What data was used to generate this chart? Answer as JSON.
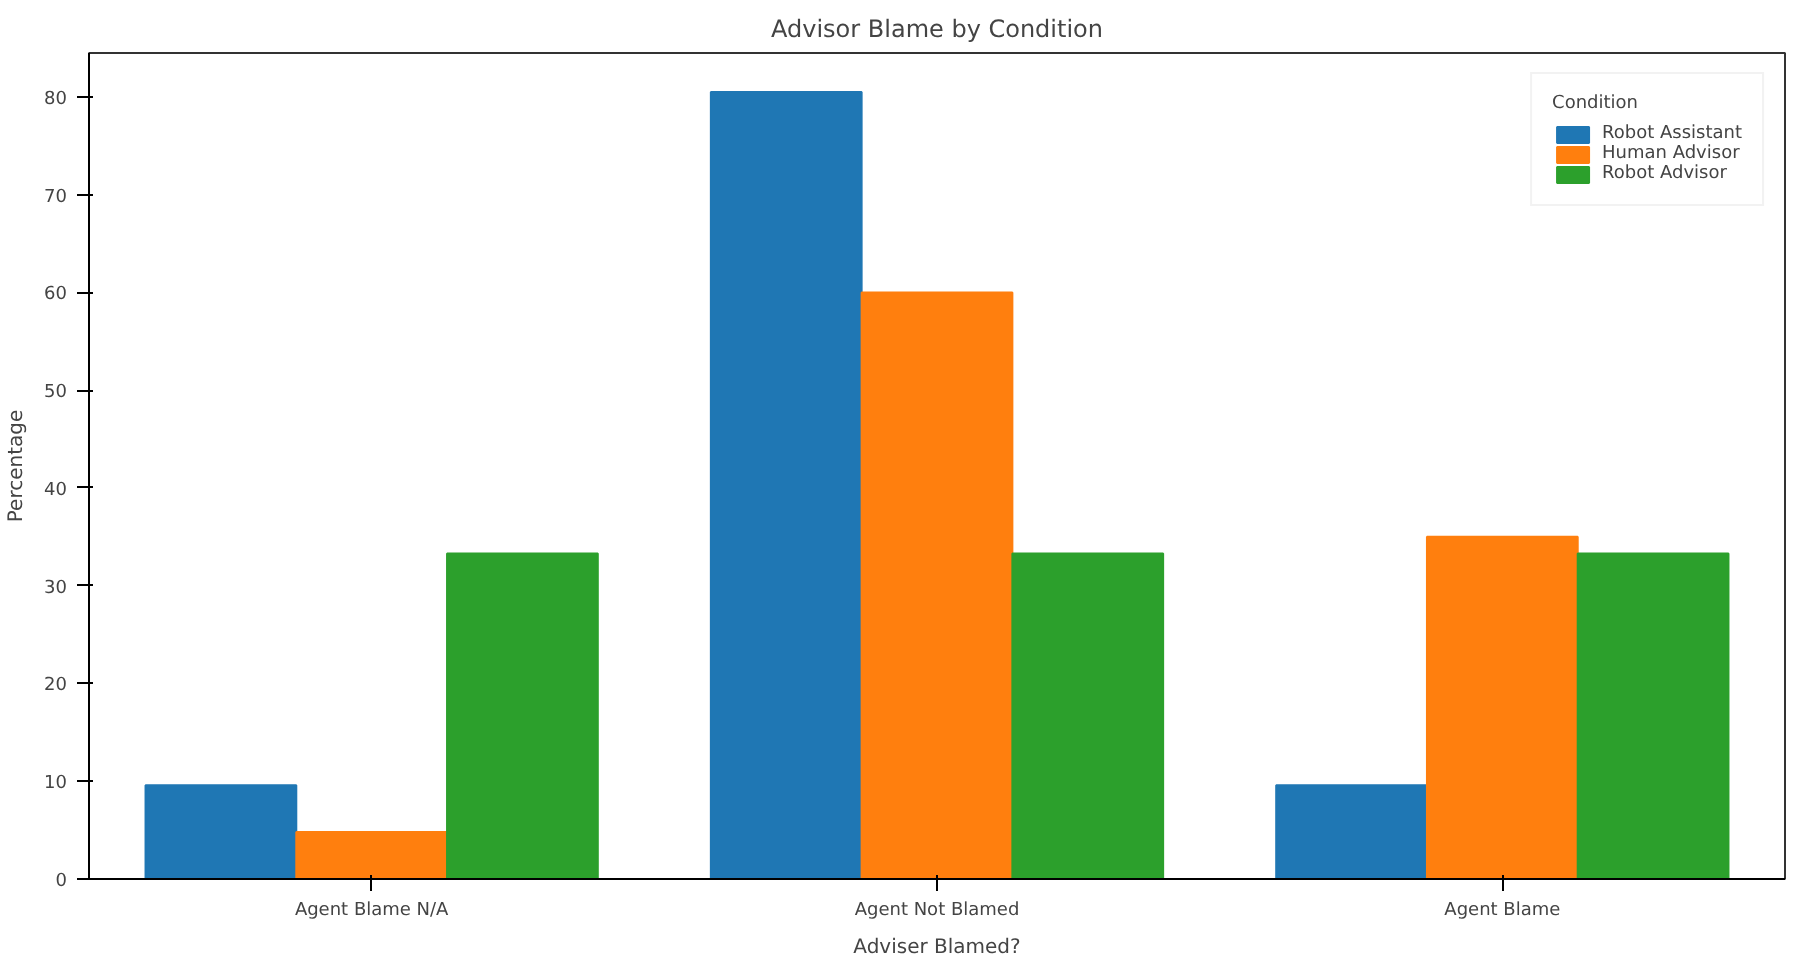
{
  "chart_data": {
    "type": "bar",
    "title": "Advisor Blame by Condition",
    "xlabel": "Adviser Blamed?",
    "ylabel": "Percentage",
    "legend_title": "Condition",
    "categories": [
      "Agent Blame N/A",
      "Agent Not Blamed",
      "Agent Blame"
    ],
    "series": [
      {
        "name": "Robot Assistant",
        "color": "#1f77b4",
        "values": [
          9.6,
          80.5,
          9.6
        ]
      },
      {
        "name": "Human Advisor",
        "color": "#ff7f0e",
        "values": [
          4.8,
          60.0,
          35.0
        ]
      },
      {
        "name": "Robot Advisor",
        "color": "#2ca02c",
        "values": [
          33.3,
          33.3,
          33.3
        ]
      }
    ],
    "ylim": [
      0,
      84.5
    ],
    "yticks": [
      0,
      10,
      20,
      30,
      40,
      50,
      60,
      70,
      80
    ],
    "grid": false,
    "legend": "top right"
  }
}
